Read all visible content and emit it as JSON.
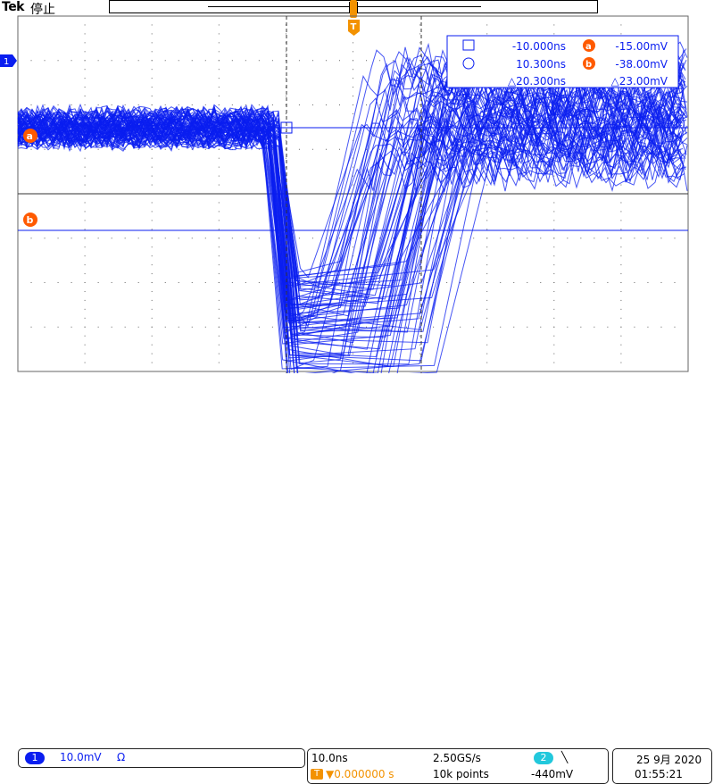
{
  "header": {
    "brand": "Tek",
    "status": "停止"
  },
  "colors": {
    "trace": "#0a1ef0",
    "trigger": "#f39200",
    "cursor": "#ff5a00",
    "ch2": "#22c8dc",
    "grid": "#444444"
  },
  "markers": {
    "ch1": "1",
    "trigger": "T",
    "cursor_a": "a",
    "cursor_b": "b"
  },
  "readout": {
    "t1": "-10.000ns",
    "t2": "10.300ns",
    "dt": "△20.300ns",
    "va": "-15.00mV",
    "vb": "-38.00mV",
    "dv": "△23.00mV"
  },
  "channel1": {
    "label": "1",
    "scale": "10.0mV",
    "impedance": "Ω"
  },
  "acquisition": {
    "timebase": "10.0ns",
    "sample_rate": "2.50GS/s",
    "trigger_source": "2",
    "trigger_slope": "╲",
    "trigger_offset": "▼0.000000 s",
    "record_length": "10k points",
    "trigger_level": "-440mV"
  },
  "datetime": {
    "date": "25 9月 2020",
    "time": "01:55:21"
  }
}
